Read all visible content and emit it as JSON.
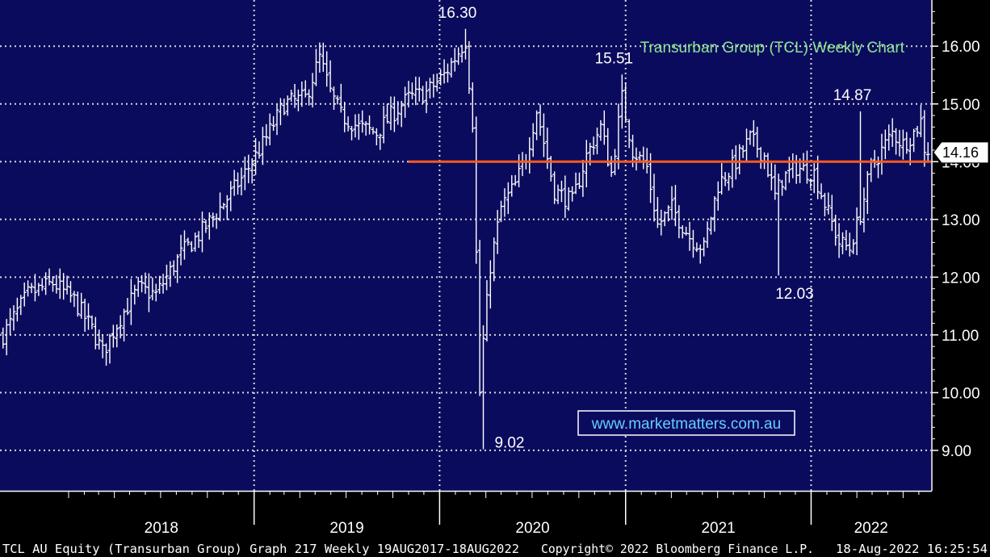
{
  "chart_data": {
    "type": "ohlc",
    "title": "Transurban Group (TCL) Weekly Chart",
    "watermark": "www.marketmatters.com.au",
    "ylim": [
      8.3,
      16.8
    ],
    "yticks": [
      9,
      10,
      11,
      12,
      13,
      14,
      15,
      16
    ],
    "ytick_labels": [
      "9.00",
      "10.00",
      "11.00",
      "12.00",
      "13.00",
      "14.00",
      "15.00",
      "16.00"
    ],
    "x_categories": [
      "2018",
      "2019",
      "2020",
      "2021",
      "2022"
    ],
    "last_price": 14.16,
    "last_price_label": "14.16",
    "resistance_level": 14.0,
    "annotations": [
      {
        "label": "16.30",
        "value": 16.3,
        "date": "2020-02-21"
      },
      {
        "label": "15.51",
        "value": 15.51,
        "date": "2020-12-25"
      },
      {
        "label": "14.87",
        "value": 14.87,
        "date": "2022-04-08"
      },
      {
        "label": "12.03",
        "value": 12.03,
        "date": "2021-10-29"
      },
      {
        "label": "9.02",
        "value": 9.02,
        "date": "2020-03-27"
      }
    ],
    "close_path": [
      [
        "2017-08-25",
        11.0
      ],
      [
        "2017-10-13",
        11.7
      ],
      [
        "2017-12-01",
        11.9
      ],
      [
        "2018-01-12",
        11.6
      ],
      [
        "2018-02-16",
        11.1
      ],
      [
        "2018-03-09",
        10.7
      ],
      [
        "2018-04-13",
        11.3
      ],
      [
        "2018-05-18",
        11.8
      ],
      [
        "2018-06-22",
        11.7
      ],
      [
        "2018-08-10",
        12.4
      ],
      [
        "2018-09-21",
        12.8
      ],
      [
        "2018-10-26",
        13.2
      ],
      [
        "2018-12-07",
        13.7
      ],
      [
        "2019-01-18",
        14.3
      ],
      [
        "2019-03-01",
        15.0
      ],
      [
        "2019-04-12",
        15.1
      ],
      [
        "2019-05-10",
        15.8
      ],
      [
        "2019-05-31",
        15.2
      ],
      [
        "2019-06-21",
        14.8
      ],
      [
        "2019-07-26",
        14.6
      ],
      [
        "2019-08-30",
        14.5
      ],
      [
        "2019-09-27",
        14.8
      ],
      [
        "2019-11-01",
        15.1
      ],
      [
        "2019-12-06",
        15.2
      ],
      [
        "2020-01-10",
        15.5
      ],
      [
        "2020-02-07",
        15.9
      ],
      [
        "2020-02-21",
        16.1
      ],
      [
        "2020-03-06",
        14.7
      ],
      [
        "2020-03-13",
        12.4
      ],
      [
        "2020-03-20",
        10.0
      ],
      [
        "2020-03-27",
        10.9
      ],
      [
        "2020-04-10",
        12.2
      ],
      [
        "2020-05-01",
        13.2
      ],
      [
        "2020-05-29",
        13.6
      ],
      [
        "2020-06-19",
        14.1
      ],
      [
        "2020-07-10",
        14.9
      ],
      [
        "2020-08-14",
        13.5
      ],
      [
        "2020-09-18",
        13.3
      ],
      [
        "2020-10-16",
        14.1
      ],
      [
        "2020-11-13",
        14.6
      ],
      [
        "2020-12-04",
        13.8
      ],
      [
        "2020-12-25",
        15.1
      ],
      [
        "2021-01-15",
        14.2
      ],
      [
        "2021-02-12",
        13.9
      ],
      [
        "2021-03-05",
        12.9
      ],
      [
        "2021-04-02",
        13.2
      ],
      [
        "2021-05-07",
        12.7
      ],
      [
        "2021-06-04",
        12.5
      ],
      [
        "2021-07-02",
        13.6
      ],
      [
        "2021-08-06",
        14.0
      ],
      [
        "2021-09-03",
        14.4
      ],
      [
        "2021-10-01",
        14.1
      ],
      [
        "2021-10-22",
        13.4
      ],
      [
        "2021-11-05",
        13.7
      ],
      [
        "2021-12-03",
        13.9
      ],
      [
        "2022-01-07",
        13.8
      ],
      [
        "2022-02-04",
        13.1
      ],
      [
        "2022-02-25",
        12.6
      ],
      [
        "2022-03-18",
        12.5
      ],
      [
        "2022-04-08",
        13.1
      ],
      [
        "2022-04-29",
        13.9
      ],
      [
        "2022-05-20",
        14.2
      ],
      [
        "2022-06-10",
        14.5
      ],
      [
        "2022-07-01",
        14.3
      ],
      [
        "2022-07-22",
        14.5
      ],
      [
        "2022-08-05",
        14.7
      ],
      [
        "2022-08-12",
        14.2
      ]
    ]
  },
  "footer": {
    "left": "TCL AU Equity (Transurban Group) Graph 217  Weekly 19AUG2017-18AUG2022",
    "center": "Copyright© 2022 Bloomberg Finance L.P.",
    "right": "18-Aug-2022 16:25:54"
  },
  "colors": {
    "plot_background": "#0b0b5e",
    "bars": "#ffffff",
    "resistance_line": "#ff5a1a",
    "title": "#8ee68e",
    "watermark": "#66ccff",
    "text": "#ffffff"
  }
}
